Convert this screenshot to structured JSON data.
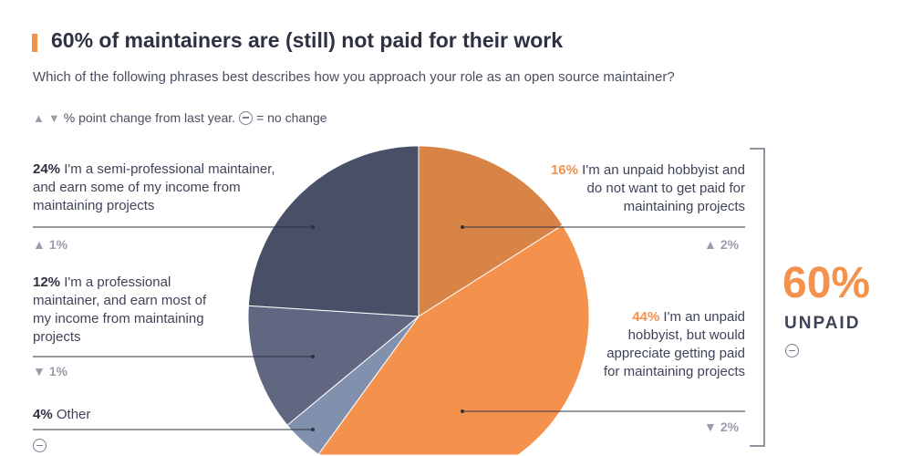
{
  "header": {
    "title": "60% of maintainers are (still) not paid for their work",
    "subtitle": "Which of the following phrases best describes how you approach your role as an open source maintainer?",
    "legend_text": "% point change from last year.",
    "legend_nochange": "= no change"
  },
  "summary": {
    "value": "60%",
    "label": "UNPAID",
    "change": "no-change"
  },
  "colors": {
    "accent": "#f4914d"
  },
  "chart_data": {
    "type": "pie",
    "title": "60% of maintainers are (still) not paid for their work",
    "start": "12 o'clock",
    "direction": "clockwise",
    "slices": [
      {
        "pct": "16%",
        "value": 16,
        "text": "I'm an unpaid hobbyist and do not want to get paid for maintaining projects",
        "change": "2%",
        "change_dir": "up",
        "color": "#d98447"
      },
      {
        "pct": "44%",
        "value": 44,
        "text": "I'm an unpaid hobbyist, but would appreciate getting paid for maintaining projects",
        "change": "2%",
        "change_dir": "down",
        "color": "#f4914d"
      },
      {
        "pct": "4%",
        "value": 4,
        "text": "Other",
        "change": "",
        "change_dir": "none",
        "color": "#8191ad"
      },
      {
        "pct": "12%",
        "value": 12,
        "text": "I'm a professional maintainer, and earn most of my income from maintaining projects",
        "change": "1%",
        "change_dir": "down",
        "color": "#626781"
      },
      {
        "pct": "24%",
        "value": 24,
        "text": "I'm a semi-professional maintainer, and earn some of my income from maintaining projects",
        "change": "1%",
        "change_dir": "up",
        "color": "#4a4f68"
      }
    ]
  }
}
